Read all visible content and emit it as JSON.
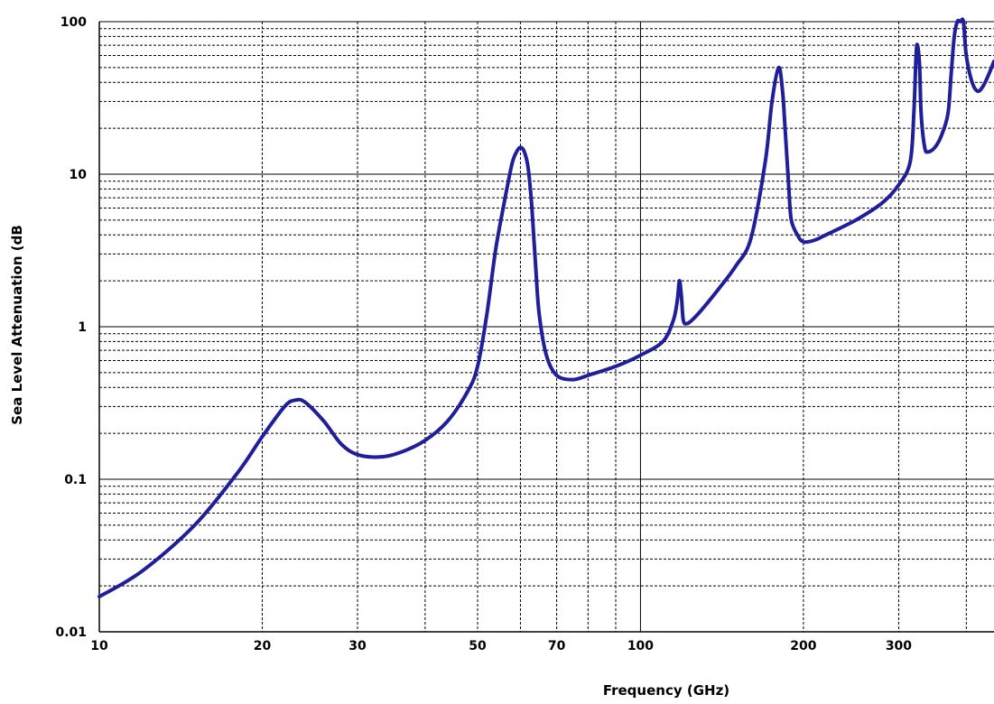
{
  "chart_data": {
    "type": "line",
    "xlabel": "Frequency (GHz)",
    "ylabel": "Sea Level Attenuation (dB",
    "x_scale": "log",
    "y_scale": "log",
    "xlim": [
      10,
      450
    ],
    "ylim": [
      0.01,
      100
    ],
    "grid": true,
    "legend": "none",
    "x_tick_labels": [
      {
        "value": 10,
        "label": "10"
      },
      {
        "value": 20,
        "label": "20"
      },
      {
        "value": 30,
        "label": "30"
      },
      {
        "value": 50,
        "label": "50"
      },
      {
        "value": 70,
        "label": "70"
      },
      {
        "value": 100,
        "label": "100"
      },
      {
        "value": 200,
        "label": "200"
      },
      {
        "value": 300,
        "label": "300"
      }
    ],
    "y_tick_labels": [
      {
        "value": 0.01,
        "label": "0.01"
      },
      {
        "value": 0.1,
        "label": "0.1"
      },
      {
        "value": 1,
        "label": "1"
      },
      {
        "value": 10,
        "label": "10"
      },
      {
        "value": 100,
        "label": "100"
      }
    ],
    "line_color": "#1f1f9a",
    "series": [
      {
        "x": [
          10,
          12,
          15,
          18,
          20,
          22,
          23,
          24,
          26,
          28,
          30,
          33,
          36,
          40,
          44,
          48,
          50,
          52,
          54,
          56,
          57,
          58,
          59,
          60,
          61,
          62,
          63,
          64,
          65,
          67,
          70,
          75,
          80,
          90,
          100,
          110,
          115,
          117,
          118,
          119,
          120,
          122,
          125,
          130,
          140,
          150,
          160,
          170,
          175,
          180,
          183,
          185,
          188,
          190,
          195,
          200,
          210,
          220,
          250,
          280,
          300,
          315,
          320,
          323,
          325,
          328,
          330,
          335,
          340,
          350,
          360,
          370,
          375,
          380,
          385,
          390,
          395,
          400,
          410,
          420,
          430,
          440,
          450
        ],
        "y": [
          0.017,
          0.025,
          0.05,
          0.11,
          0.19,
          0.3,
          0.33,
          0.32,
          0.24,
          0.17,
          0.145,
          0.14,
          0.15,
          0.18,
          0.24,
          0.38,
          0.55,
          1.2,
          3.2,
          6.5,
          9,
          12,
          14,
          15,
          14,
          11,
          6,
          2.5,
          1.2,
          0.65,
          0.48,
          0.45,
          0.48,
          0.55,
          0.65,
          0.8,
          1.1,
          1.5,
          2.0,
          1.6,
          1.1,
          1.05,
          1.12,
          1.3,
          1.8,
          2.5,
          3.8,
          12,
          30,
          50,
          35,
          20,
          8,
          5,
          4,
          3.6,
          3.7,
          4.0,
          5,
          6.5,
          8.5,
          12,
          25,
          60,
          70,
          50,
          25,
          15,
          14,
          15,
          18,
          25,
          45,
          80,
          100,
          100,
          100,
          60,
          40,
          35,
          38,
          45,
          55
        ]
      }
    ]
  }
}
